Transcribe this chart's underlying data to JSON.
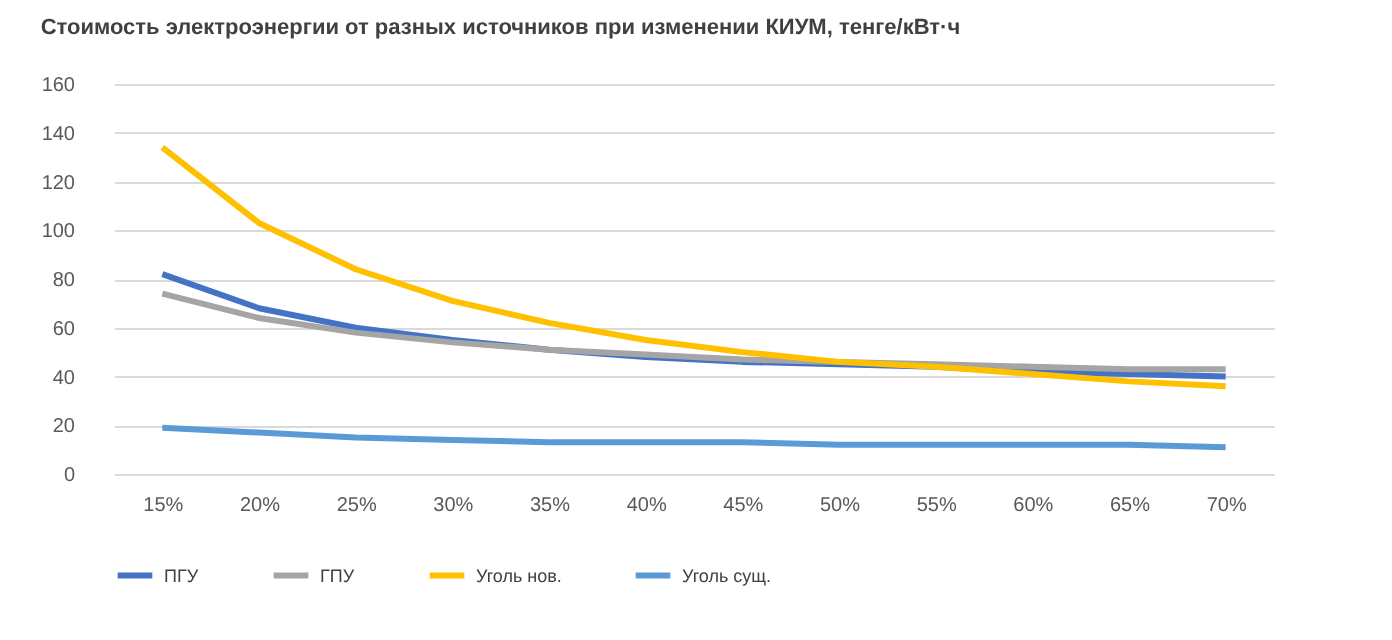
{
  "chart_data": {
    "type": "line",
    "title": "Стоимость электроэнергии от разных источников при изменении КИУМ, тенге/кВт·ч",
    "categories": [
      "15%",
      "20%",
      "25%",
      "30%",
      "35%",
      "40%",
      "45%",
      "50%",
      "55%",
      "60%",
      "65%",
      "70%"
    ],
    "series": [
      {
        "name": "ПГУ",
        "color": "#4472c4",
        "values": [
          82,
          68,
          60,
          55,
          51,
          48,
          46,
          45,
          44,
          42,
          41,
          40
        ]
      },
      {
        "name": "ГПУ",
        "color": "#a5a5a5",
        "values": [
          74,
          64,
          58,
          54,
          51,
          49,
          47,
          46,
          45,
          44,
          43,
          43
        ]
      },
      {
        "name": "Уголь нов.",
        "color": "#ffc000",
        "values": [
          134,
          103,
          84,
          71,
          62,
          55,
          50,
          46,
          44,
          41,
          38,
          36
        ]
      },
      {
        "name": "Уголь сущ.",
        "color": "#5b9bd5",
        "values": [
          19,
          17,
          15,
          14,
          13,
          13,
          13,
          12,
          12,
          12,
          12,
          11
        ]
      }
    ],
    "ylim": [
      0,
      160
    ],
    "yticks": [
      0,
      20,
      40,
      60,
      80,
      100,
      120,
      140,
      160
    ],
    "grid": "y",
    "legend": "bottom",
    "marker": "none",
    "line_style": "solid"
  }
}
